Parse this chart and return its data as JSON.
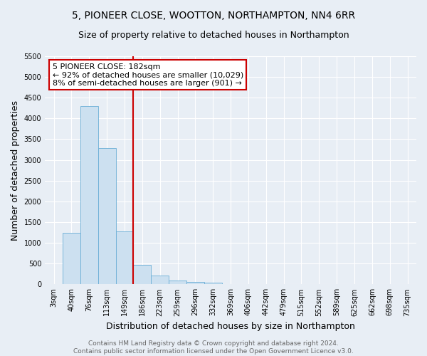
{
  "title_line1": "5, PIONEER CLOSE, WOOTTON, NORTHAMPTON, NN4 6RR",
  "title_line2": "Size of property relative to detached houses in Northampton",
  "xlabel": "Distribution of detached houses by size in Northampton",
  "ylabel": "Number of detached properties",
  "bar_labels": [
    "3sqm",
    "40sqm",
    "76sqm",
    "113sqm",
    "149sqm",
    "186sqm",
    "223sqm",
    "259sqm",
    "296sqm",
    "332sqm",
    "369sqm",
    "406sqm",
    "442sqm",
    "479sqm",
    "515sqm",
    "552sqm",
    "589sqm",
    "625sqm",
    "662sqm",
    "698sqm",
    "735sqm"
  ],
  "bar_values": [
    0,
    1250,
    4300,
    3280,
    1280,
    470,
    210,
    85,
    50,
    35,
    0,
    0,
    0,
    0,
    0,
    0,
    0,
    0,
    0,
    0,
    0
  ],
  "bar_color": "#cce0f0",
  "bar_edge_color": "#6aaed6",
  "vline_color": "#cc0000",
  "annotation_text": "5 PIONEER CLOSE: 182sqm\n← 92% of detached houses are smaller (10,029)\n8% of semi-detached houses are larger (901) →",
  "annotation_box_facecolor": "#ffffff",
  "annotation_box_edgecolor": "#cc0000",
  "ylim": [
    0,
    5500
  ],
  "yticks": [
    0,
    500,
    1000,
    1500,
    2000,
    2500,
    3000,
    3500,
    4000,
    4500,
    5000,
    5500
  ],
  "bg_color": "#e8eef5",
  "plot_bg_color": "#e8eef5",
  "footer_text": "Contains HM Land Registry data © Crown copyright and database right 2024.\nContains public sector information licensed under the Open Government Licence v3.0.",
  "title1_fontsize": 10,
  "title2_fontsize": 9,
  "axis_label_fontsize": 9,
  "tick_fontsize": 7,
  "footer_fontsize": 6.5,
  "annot_fontsize": 8
}
